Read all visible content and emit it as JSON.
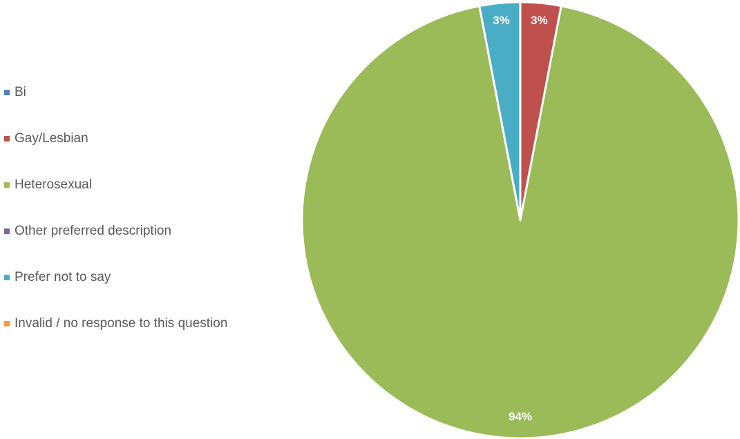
{
  "chart_data": {
    "type": "pie",
    "categories": [
      "Bi",
      "Gay/Lesbian",
      "Heterosexual",
      "Other preferred description",
      "Prefer not to say",
      "Invalid / no response to this question"
    ],
    "values": [
      0,
      3,
      94,
      0,
      3,
      0
    ],
    "data_labels": [
      "",
      "3%",
      "94%",
      "",
      "3%",
      ""
    ],
    "colors": [
      "#4F81BD",
      "#C0504D",
      "#9BBB59",
      "#8064A2",
      "#4BACC6",
      "#F79646"
    ],
    "legend": "left",
    "title": ""
  }
}
